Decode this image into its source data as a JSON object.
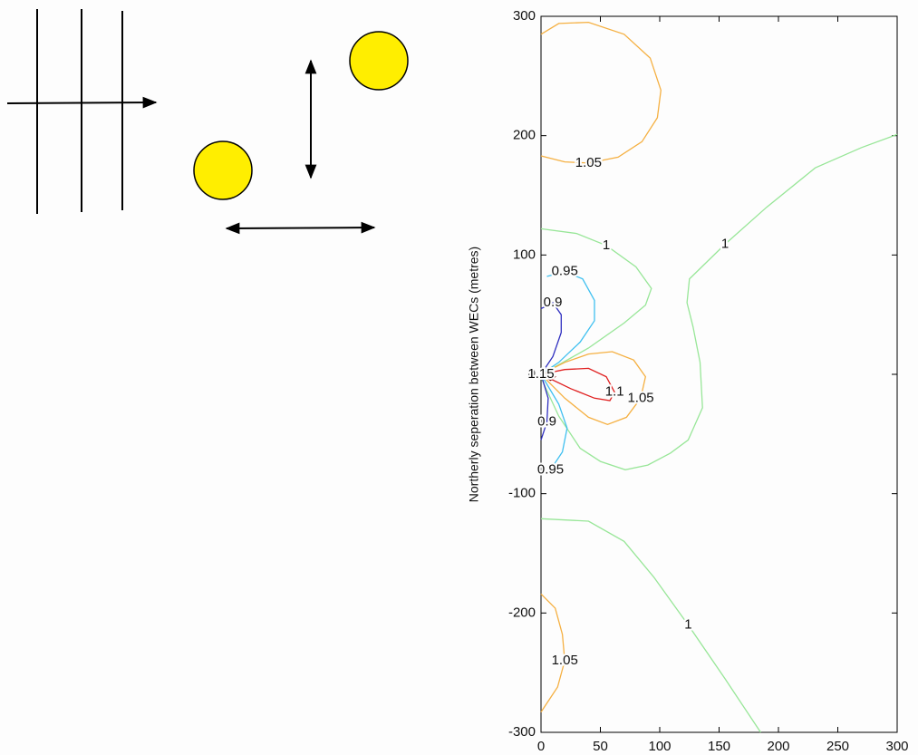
{
  "chart_data": {
    "type": "contour",
    "ylabel": "Northerly seperation between WECs (metres)",
    "xlim": [
      0,
      300
    ],
    "ylim": [
      -300,
      300
    ],
    "xticks": [
      0,
      50,
      100,
      150,
      200,
      250,
      300
    ],
    "yticks": [
      -300,
      -200,
      -100,
      0,
      100,
      200,
      300
    ],
    "contours": [
      {
        "level": 1.05,
        "color": "#f5b042",
        "x": [
          0,
          15,
          40,
          70,
          92,
          101,
          98,
          85,
          65,
          40,
          20,
          0
        ],
        "y": [
          285,
          294,
          295,
          285,
          265,
          238,
          215,
          195,
          182,
          177,
          178,
          183
        ]
      },
      {
        "level": 1,
        "color": "#98e698",
        "x": [
          0,
          30,
          55,
          80,
          93,
          88,
          70,
          40,
          15,
          0
        ],
        "y": [
          122,
          118,
          108,
          90,
          72,
          58,
          43,
          22,
          8,
          0
        ]
      },
      {
        "level": 1,
        "color": "#98e698",
        "x": [
          300,
          270,
          231,
          190,
          155,
          125,
          123,
          128,
          134,
          136,
          124,
          109,
          90,
          71,
          50,
          33,
          15,
          0
        ],
        "y": [
          201,
          190,
          173,
          140,
          109,
          80,
          60,
          40,
          10,
          -28,
          -55,
          -66,
          -76,
          -80,
          -73,
          -62,
          -35,
          -3
        ]
      },
      {
        "level": 1,
        "color": "#98e698",
        "x": [
          0,
          40,
          70,
          95,
          124,
          155,
          185
        ],
        "y": [
          -121,
          -123,
          -140,
          -170,
          -210,
          -255,
          -300
        ]
      },
      {
        "level": 1.05,
        "color": "#f5b042",
        "x": [
          0,
          12,
          18,
          20,
          14,
          0
        ],
        "y": [
          -184,
          -196,
          -218,
          -240,
          -262,
          -283
        ]
      },
      {
        "level": 1.05,
        "color": "#f5b042",
        "x": [
          0,
          20,
          40,
          60,
          78,
          88,
          84,
          72,
          56,
          40,
          20,
          0
        ],
        "y": [
          0,
          10,
          17,
          19,
          12,
          -2,
          -20,
          -36,
          -42,
          -36,
          -20,
          0
        ]
      },
      {
        "level": 1.1,
        "color": "#e02020",
        "x": [
          0,
          20,
          40,
          55,
          62,
          58,
          45,
          25,
          0
        ],
        "y": [
          0,
          4,
          5,
          -2,
          -15,
          -22,
          -20,
          -12,
          0
        ]
      },
      {
        "level": 0.95,
        "color": "#40c0f0",
        "x": [
          5,
          20,
          35,
          45,
          45,
          33,
          15,
          0
        ],
        "y": [
          82,
          86,
          80,
          62,
          45,
          27,
          10,
          0
        ]
      },
      {
        "level": 0.95,
        "color": "#40c0f0",
        "x": [
          0,
          15,
          22,
          18,
          8,
          0
        ],
        "y": [
          0,
          -25,
          -45,
          -65,
          -80,
          -84
        ]
      },
      {
        "level": 0.9,
        "color": "#3030c0",
        "x": [
          0,
          10,
          17,
          17,
          10,
          0
        ],
        "y": [
          55,
          60,
          50,
          35,
          15,
          0
        ]
      },
      {
        "level": 0.9,
        "color": "#3030c0",
        "x": [
          0,
          6,
          5,
          0
        ],
        "y": [
          0,
          -20,
          -40,
          -55
        ]
      },
      {
        "level": 1.15,
        "color": "#8b0000",
        "x": [
          0,
          8,
          12,
          8,
          0
        ],
        "y": [
          0,
          2,
          -2,
          -5,
          0
        ]
      }
    ]
  }
}
